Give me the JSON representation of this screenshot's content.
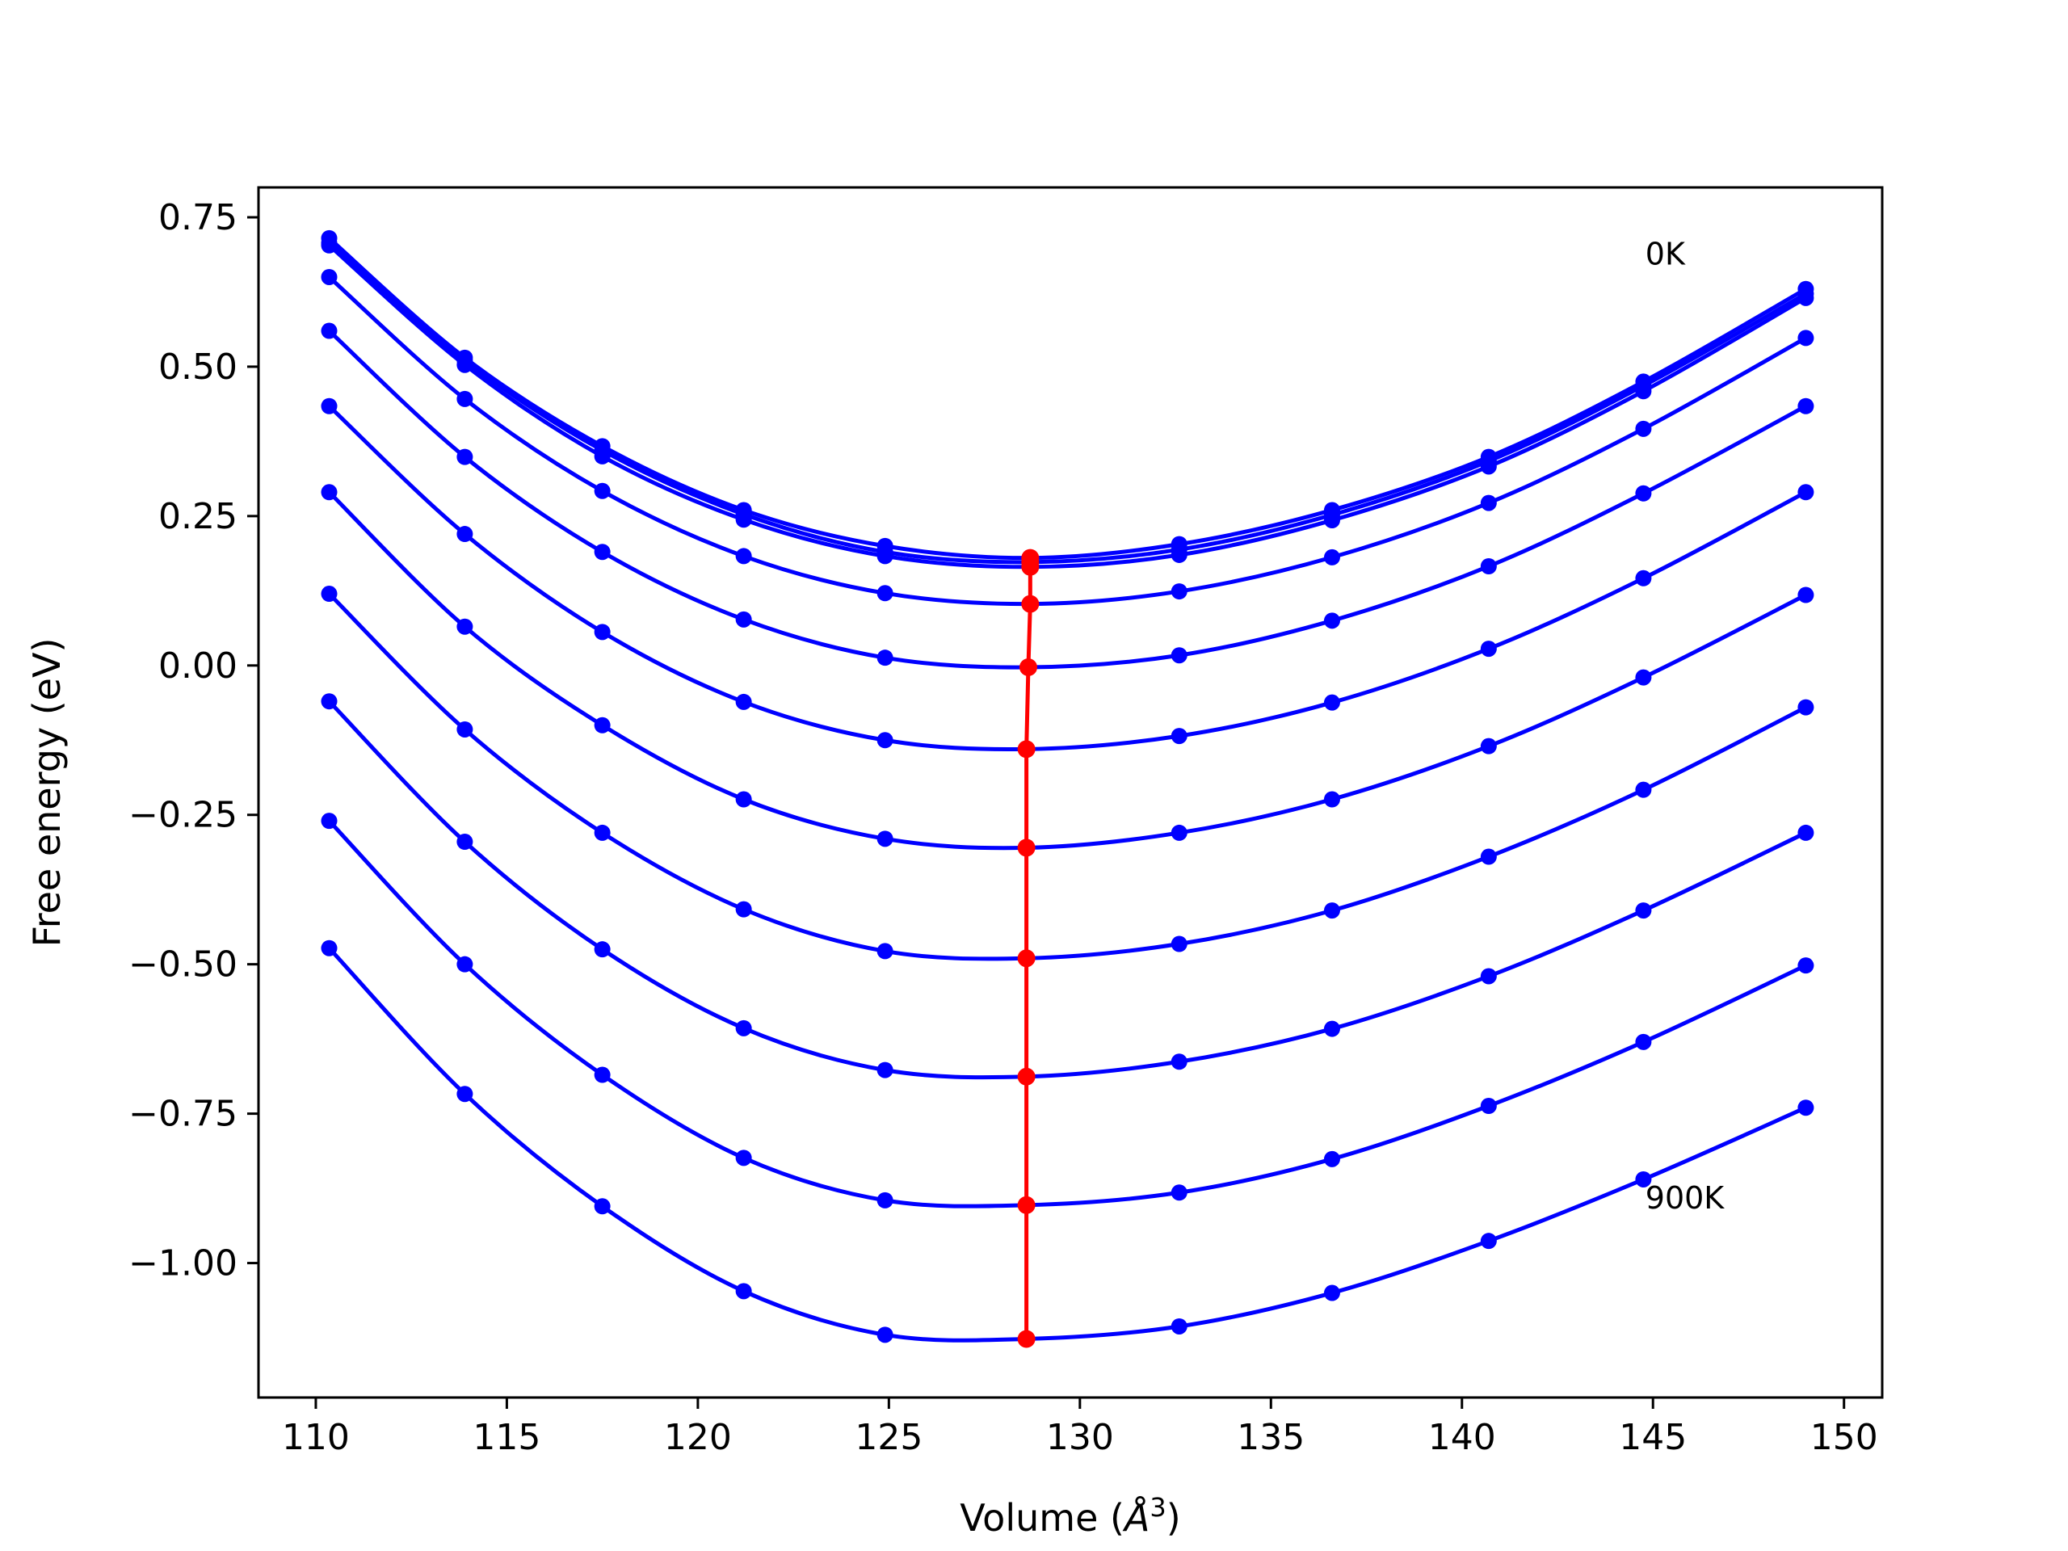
{
  "chart_data": {
    "type": "line",
    "xlabel_prefix": "Volume (",
    "xlabel_unit": "Å",
    "xlabel_exp": "3",
    "xlabel_suffix": ")",
    "ylabel": "Free energy (eV)",
    "xlim": [
      108.5,
      151.0
    ],
    "ylim": [
      -1.225,
      0.8
    ],
    "xticks": [
      110,
      115,
      120,
      125,
      130,
      135,
      140,
      145,
      150
    ],
    "xtick_labels": [
      "110",
      "115",
      "120",
      "125",
      "130",
      "135",
      "140",
      "145",
      "150"
    ],
    "yticks": [
      0.75,
      0.5,
      0.25,
      0.0,
      -0.25,
      -0.5,
      -0.75,
      -1.0
    ],
    "ytick_labels": [
      "0.75",
      "0.50",
      "0.25",
      "0.00",
      "−0.25",
      "−0.50",
      "−0.75",
      "−1.00"
    ],
    "grid": false,
    "x": [
      110.35,
      113.9,
      117.5,
      121.2,
      124.9,
      132.6,
      136.6,
      140.7,
      144.75,
      149.0
    ],
    "series": [
      {
        "values": [
          0.715,
          0.515,
          0.367,
          0.26,
          0.2,
          0.203,
          0.26,
          0.349,
          0.475,
          0.63
        ],
        "vmin": 128.7,
        "fmin": 0.18
      },
      {
        "values": [
          0.707,
          0.51,
          0.36,
          0.253,
          0.19,
          0.194,
          0.252,
          0.342,
          0.468,
          0.622
        ],
        "vmin": 128.7,
        "fmin": 0.173
      },
      {
        "values": [
          0.703,
          0.503,
          0.35,
          0.244,
          0.183,
          0.185,
          0.243,
          0.333,
          0.459,
          0.615
        ],
        "vmin": 128.7,
        "fmin": 0.165
      },
      {
        "values": [
          0.65,
          0.446,
          0.292,
          0.183,
          0.121,
          0.124,
          0.181,
          0.272,
          0.396,
          0.548
        ],
        "vmin": 128.7,
        "fmin": 0.103
      },
      {
        "values": [
          0.56,
          0.349,
          0.19,
          0.077,
          0.013,
          0.017,
          0.075,
          0.166,
          0.288,
          0.434
        ],
        "vmin": 128.65,
        "fmin": -0.003
      },
      {
        "values": [
          0.434,
          0.22,
          0.056,
          -0.061,
          -0.125,
          -0.118,
          -0.062,
          0.028,
          0.146,
          0.29
        ],
        "vmin": 128.6,
        "fmin": -0.14
      },
      {
        "values": [
          0.29,
          0.065,
          -0.1,
          -0.224,
          -0.29,
          -0.28,
          -0.224,
          -0.135,
          -0.02,
          0.118
        ],
        "vmin": 128.6,
        "fmin": -0.305
      },
      {
        "values": [
          0.12,
          -0.107,
          -0.28,
          -0.408,
          -0.478,
          -0.466,
          -0.41,
          -0.32,
          -0.208,
          -0.07
        ],
        "vmin": 128.6,
        "fmin": -0.49
      },
      {
        "values": [
          -0.06,
          -0.295,
          -0.475,
          -0.607,
          -0.677,
          -0.663,
          -0.608,
          -0.52,
          -0.41,
          -0.28
        ],
        "vmin": 128.6,
        "fmin": -0.688
      },
      {
        "values": [
          -0.26,
          -0.5,
          -0.685,
          -0.824,
          -0.895,
          -0.882,
          -0.826,
          -0.737,
          -0.63,
          -0.502
        ],
        "vmin": 128.6,
        "fmin": -0.903
      },
      {
        "values": [
          -0.473,
          -0.717,
          -0.905,
          -1.047,
          -1.12,
          -1.106,
          -1.05,
          -0.963,
          -0.86,
          -0.74
        ],
        "vmin": 128.6,
        "fmin": -1.127
      }
    ],
    "minima_line": {
      "x": [
        128.7,
        128.7,
        128.7,
        128.7,
        128.65,
        128.6,
        128.6,
        128.6,
        128.6,
        128.6,
        128.6
      ],
      "y": [
        0.18,
        0.173,
        0.165,
        0.103,
        -0.003,
        -0.14,
        -0.305,
        -0.49,
        -0.688,
        -0.903,
        -1.127
      ]
    },
    "annotations": [
      {
        "text": "0K",
        "x": 144.8,
        "y": 0.69
      },
      {
        "text": "900K",
        "x": 144.8,
        "y": -0.89
      }
    ],
    "colors": {
      "series": "#0000ff",
      "minima": "#ff0000",
      "axes": "#000000"
    }
  }
}
